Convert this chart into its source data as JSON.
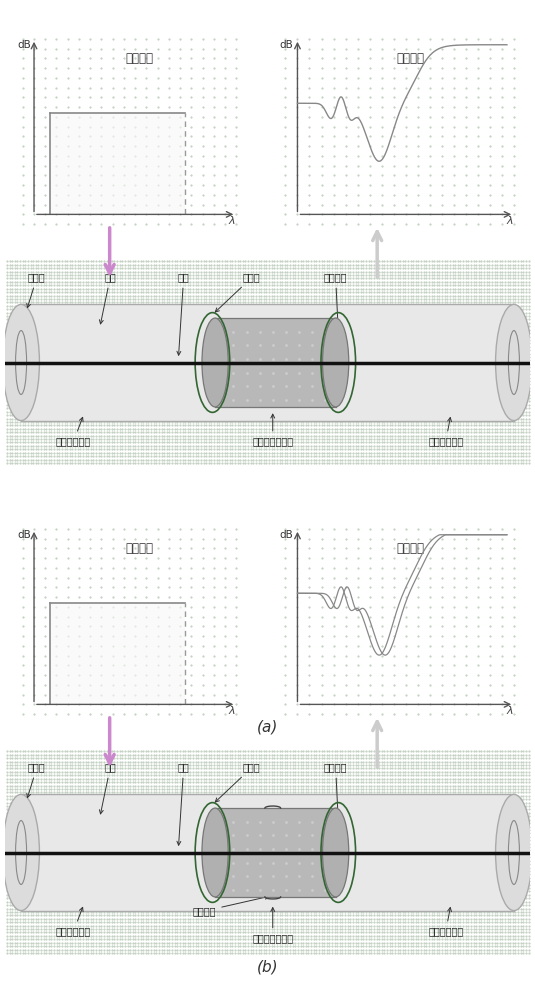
{
  "title_a": "(a)",
  "title_b": "(b)",
  "label_rusheguang": "入射光谱",
  "label_tousheguang": "透射光谱",
  "label_db": "dB",
  "label_lambda": "λ",
  "label_tuceng": "涂覆层",
  "label_baoceng": "包层",
  "label_xinzhi": "纤芯",
  "label_tiebomo": "铁薄膜",
  "label_shixinbaoceng": "实心包层",
  "label_shuru": "输入单模光纤",
  "label_wuxinzhi": "无纤芯多模光纤",
  "label_shuchu": "输出单模光纤",
  "label_fushi": "腔蚀产物",
  "bg_color": "#f0f0f0",
  "spectrum_bg": "#f0f0f0"
}
